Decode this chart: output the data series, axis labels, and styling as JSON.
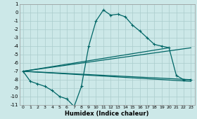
{
  "xlabel": "Humidex (Indice chaleur)",
  "bg_color": "#cce8e8",
  "grid_color": "#aacccc",
  "line_color": "#006666",
  "xlim": [
    -0.5,
    23.5
  ],
  "ylim": [
    -11,
    1
  ],
  "xticks": [
    0,
    1,
    2,
    3,
    4,
    5,
    6,
    7,
    8,
    9,
    10,
    11,
    12,
    13,
    14,
    15,
    16,
    17,
    18,
    19,
    20,
    21,
    22,
    23
  ],
  "yticks": [
    1,
    0,
    -1,
    -2,
    -3,
    -4,
    -5,
    -6,
    -7,
    -8,
    -9,
    -10,
    -11
  ],
  "curve_x": [
    0,
    1,
    2,
    3,
    4,
    5,
    6,
    7,
    8,
    9,
    10,
    11,
    12,
    13,
    14,
    15,
    16,
    17,
    18,
    19,
    20,
    21,
    22,
    23
  ],
  "curve_y": [
    -7.0,
    -8.2,
    -8.5,
    -8.8,
    -9.3,
    -10.0,
    -10.3,
    -11.2,
    -8.8,
    -4.0,
    -1.0,
    0.3,
    -0.3,
    -0.2,
    -0.5,
    -1.5,
    -2.2,
    -3.0,
    -3.8,
    -4.0,
    -4.2,
    -7.5,
    -8.0,
    -8.0
  ],
  "line1_x": [
    0,
    23
  ],
  "line1_y": [
    -7.0,
    -8.2
  ],
  "line2_x": [
    0,
    20
  ],
  "line2_y": [
    -7.0,
    -4.2
  ],
  "line3_x": [
    0,
    23
  ],
  "line3_y": [
    -7.0,
    -4.2
  ],
  "line4_x": [
    0,
    23
  ],
  "line4_y": [
    -7.0,
    -8.0
  ]
}
